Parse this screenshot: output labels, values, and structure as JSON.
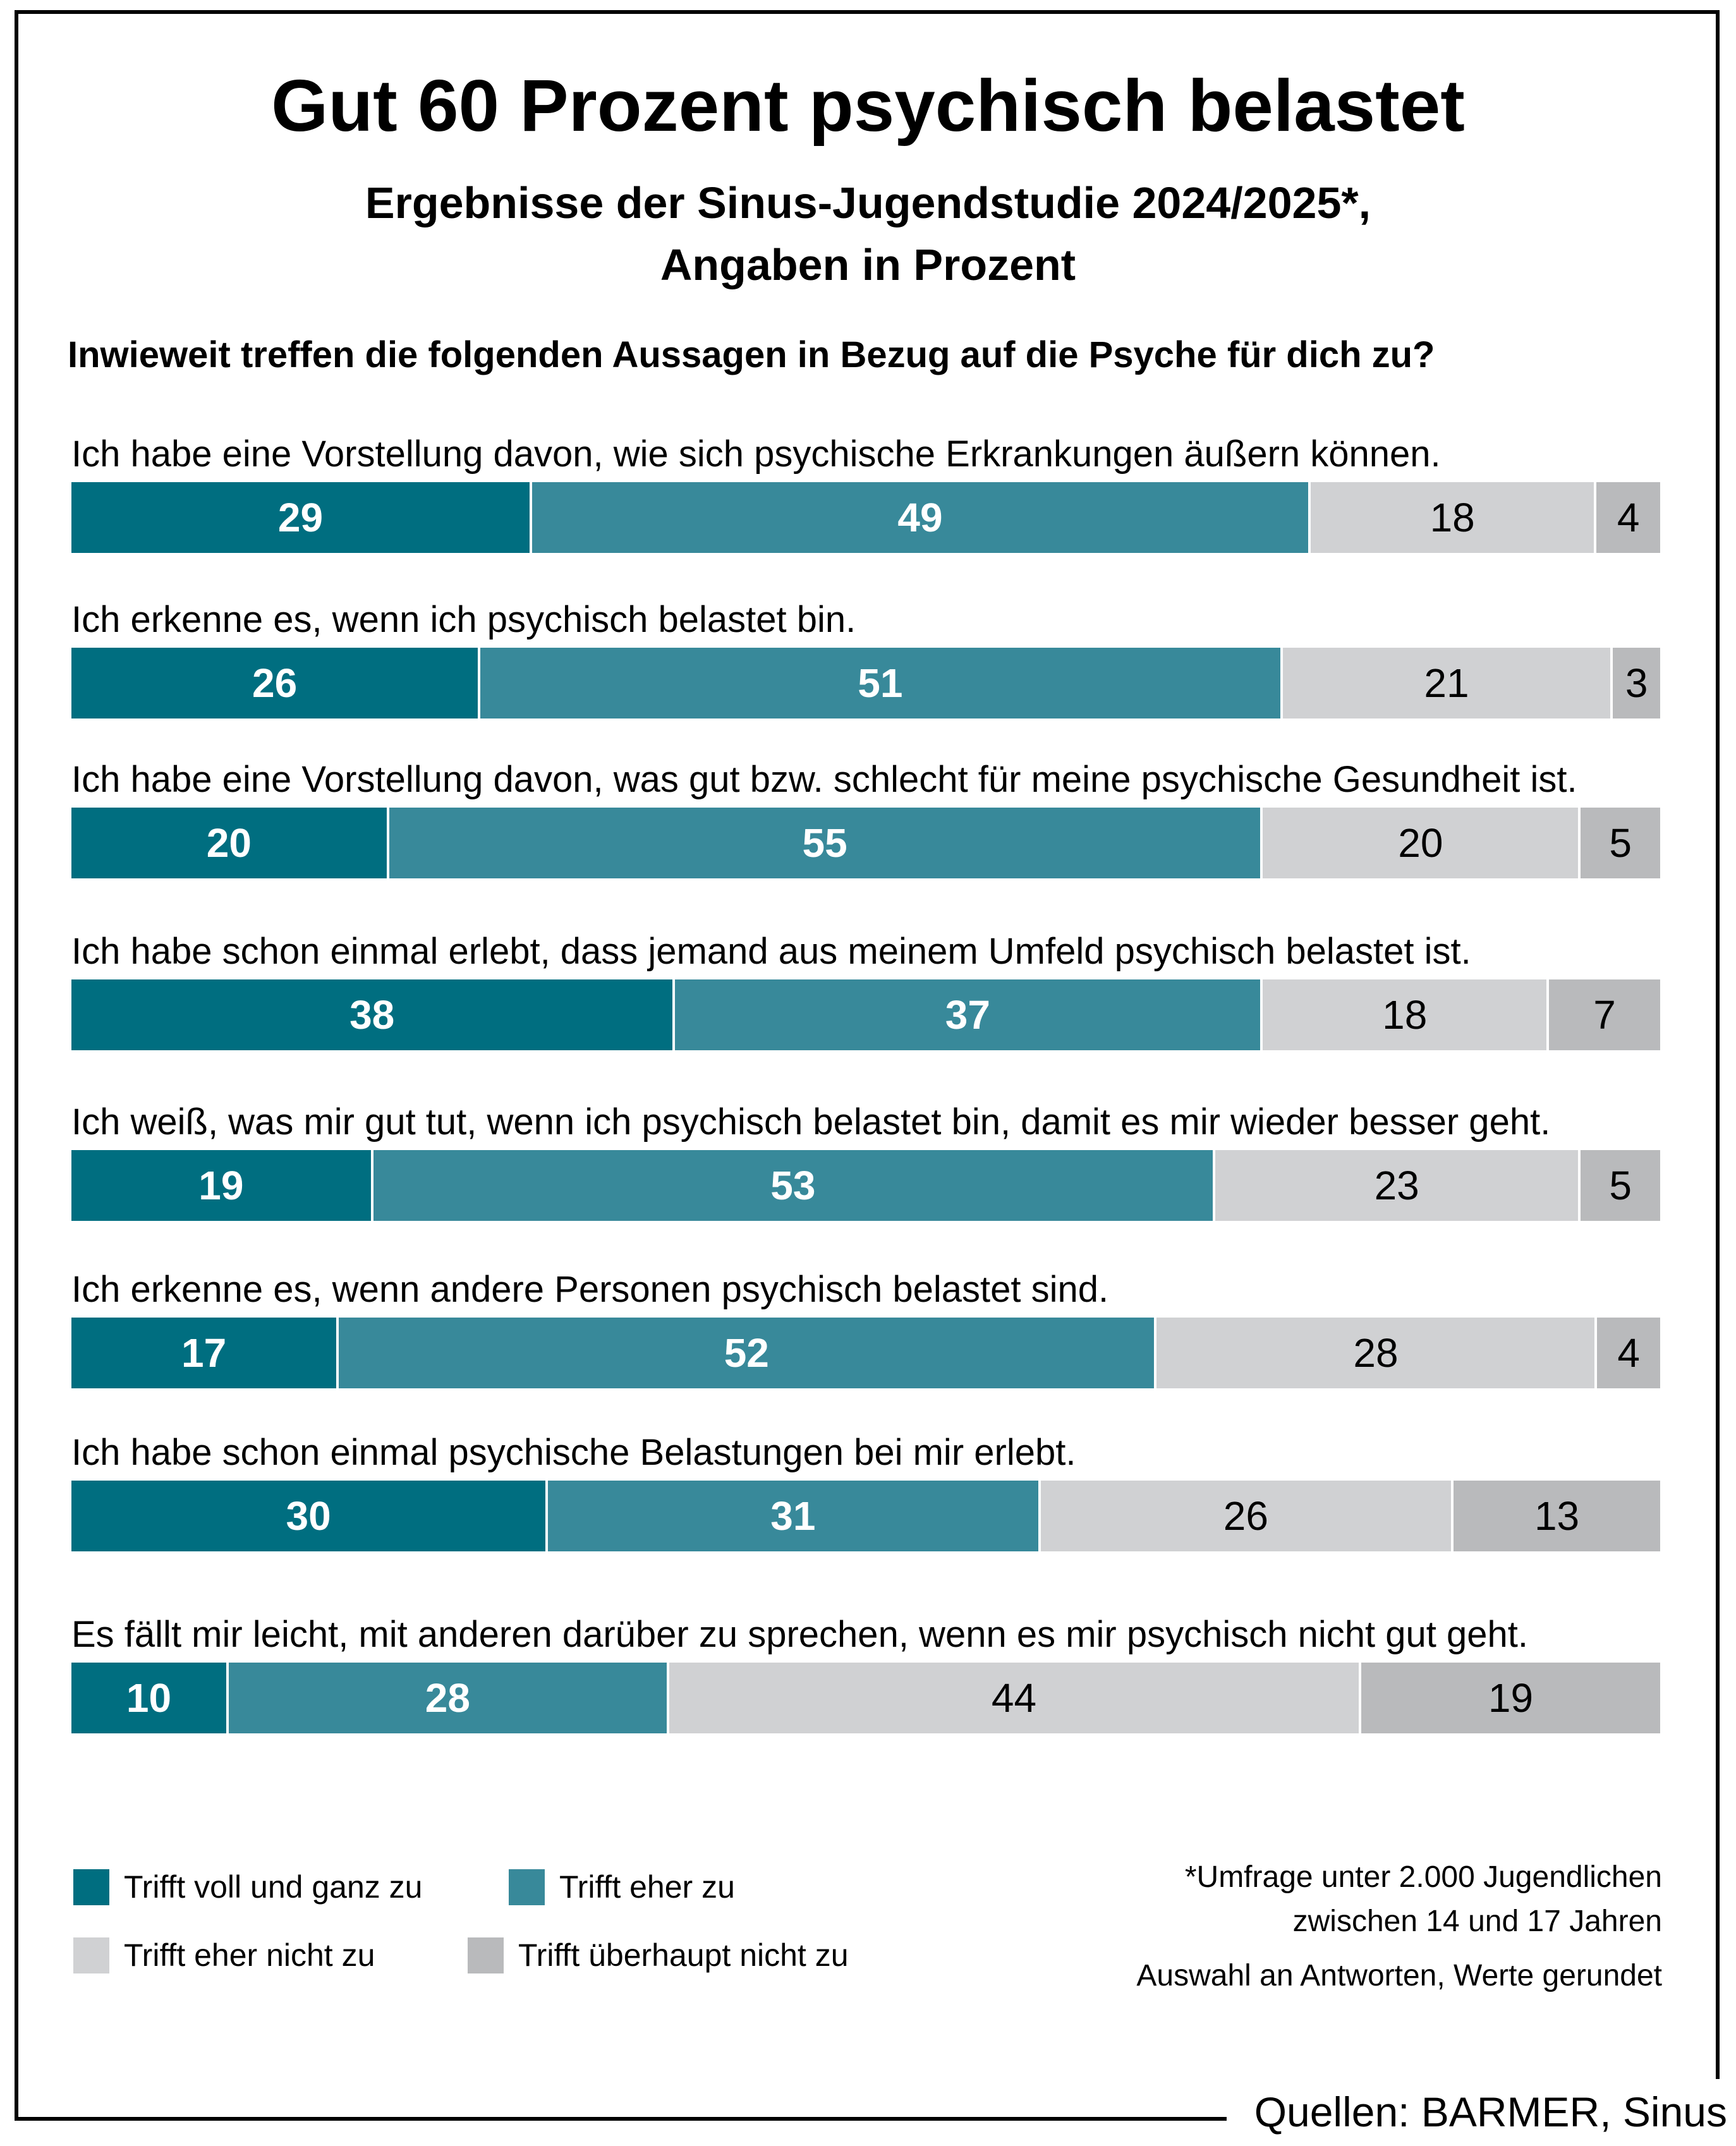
{
  "title": "Gut 60 Prozent psychisch belastet",
  "subtitle": {
    "line1": "Ergebnisse der Sinus-Jugendstudie 2024/2025*,",
    "line2": "Angaben in Prozent"
  },
  "question": "Inwieweit treffen die folgenden Aussagen in Bezug auf die Psyche für dich zu?",
  "chart_data": {
    "type": "bar",
    "orientation": "horizontal",
    "stacked": true,
    "unit": "percent",
    "xlim": [
      0,
      100
    ],
    "grid": false,
    "legend_position": "bottom-left",
    "series": [
      {
        "name": "Trifft voll und ganz zu",
        "color": "#006E80"
      },
      {
        "name": "Trifft eher zu",
        "color": "#38899A"
      },
      {
        "name": "Trifft eher nicht zu",
        "color": "#D0D1D3"
      },
      {
        "name": "Trifft überhaupt nicht zu",
        "color": "#B9BABC"
      }
    ],
    "rows": [
      {
        "label": "Ich habe eine Vorstellung davon, wie sich psychische Erkrankungen äußern können.",
        "values": [
          29,
          49,
          18,
          4
        ]
      },
      {
        "label": "Ich erkenne es, wenn ich psychisch belastet bin.",
        "values": [
          26,
          51,
          21,
          3
        ]
      },
      {
        "label": "Ich habe eine Vorstellung davon, was gut bzw. schlecht für meine psychische Gesundheit ist.",
        "values": [
          20,
          55,
          20,
          5
        ]
      },
      {
        "label": "Ich habe schon einmal erlebt, dass jemand aus meinem Umfeld psychisch belastet ist.",
        "values": [
          38,
          37,
          18,
          7
        ]
      },
      {
        "label": "Ich weiß, was mir gut tut, wenn ich psychisch belastet bin, damit es mir wieder besser geht.",
        "values": [
          19,
          53,
          23,
          5
        ]
      },
      {
        "label": "Ich erkenne es, wenn andere Personen psychisch belastet sind.",
        "values": [
          17,
          52,
          28,
          4
        ]
      },
      {
        "label": "Ich habe schon einmal psychische Belastungen bei mir erlebt.",
        "values": [
          30,
          31,
          26,
          13
        ]
      },
      {
        "label": "Es fällt mir leicht, mit anderen darüber zu sprechen, wenn es mir psychisch nicht gut geht.",
        "values": [
          10,
          28,
          44,
          19
        ]
      }
    ]
  },
  "footnote": {
    "line1": "*Umfrage unter 2.000 Jugendlichen",
    "line2": "zwischen 14 und 17 Jahren",
    "line3": "Auswahl an Antworten, Werte gerundet"
  },
  "source": "Quellen: BARMER, Sinus"
}
